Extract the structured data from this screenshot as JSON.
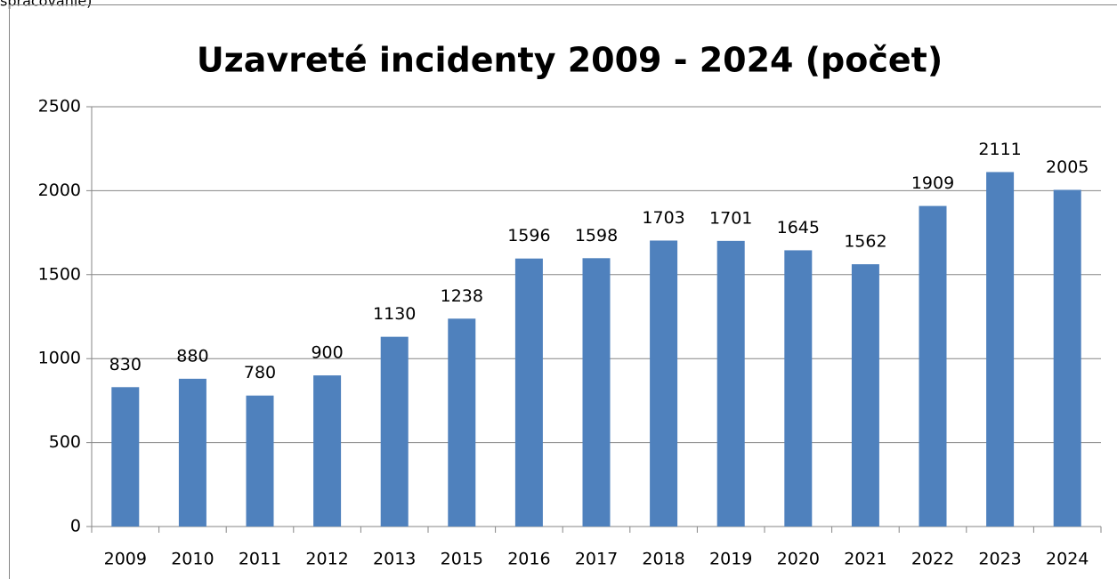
{
  "note": "spracovanie)",
  "chart_data": {
    "type": "bar",
    "title": "Uzavreté incidenty 2009 - 2024 (počet)",
    "categories": [
      "2009",
      "2010",
      "2011",
      "2012",
      "2013",
      "2015",
      "2016",
      "2017",
      "2018",
      "2019",
      "2020",
      "2021",
      "2022",
      "2023",
      "2024"
    ],
    "values": [
      830,
      880,
      780,
      900,
      1130,
      1238,
      1596,
      1598,
      1703,
      1701,
      1645,
      1562,
      1909,
      2111,
      2005
    ],
    "color": "#4f81bd",
    "ylim": [
      0,
      2500
    ],
    "yticks": [
      0,
      500,
      1000,
      1500,
      2000,
      2500
    ],
    "grid": true
  }
}
